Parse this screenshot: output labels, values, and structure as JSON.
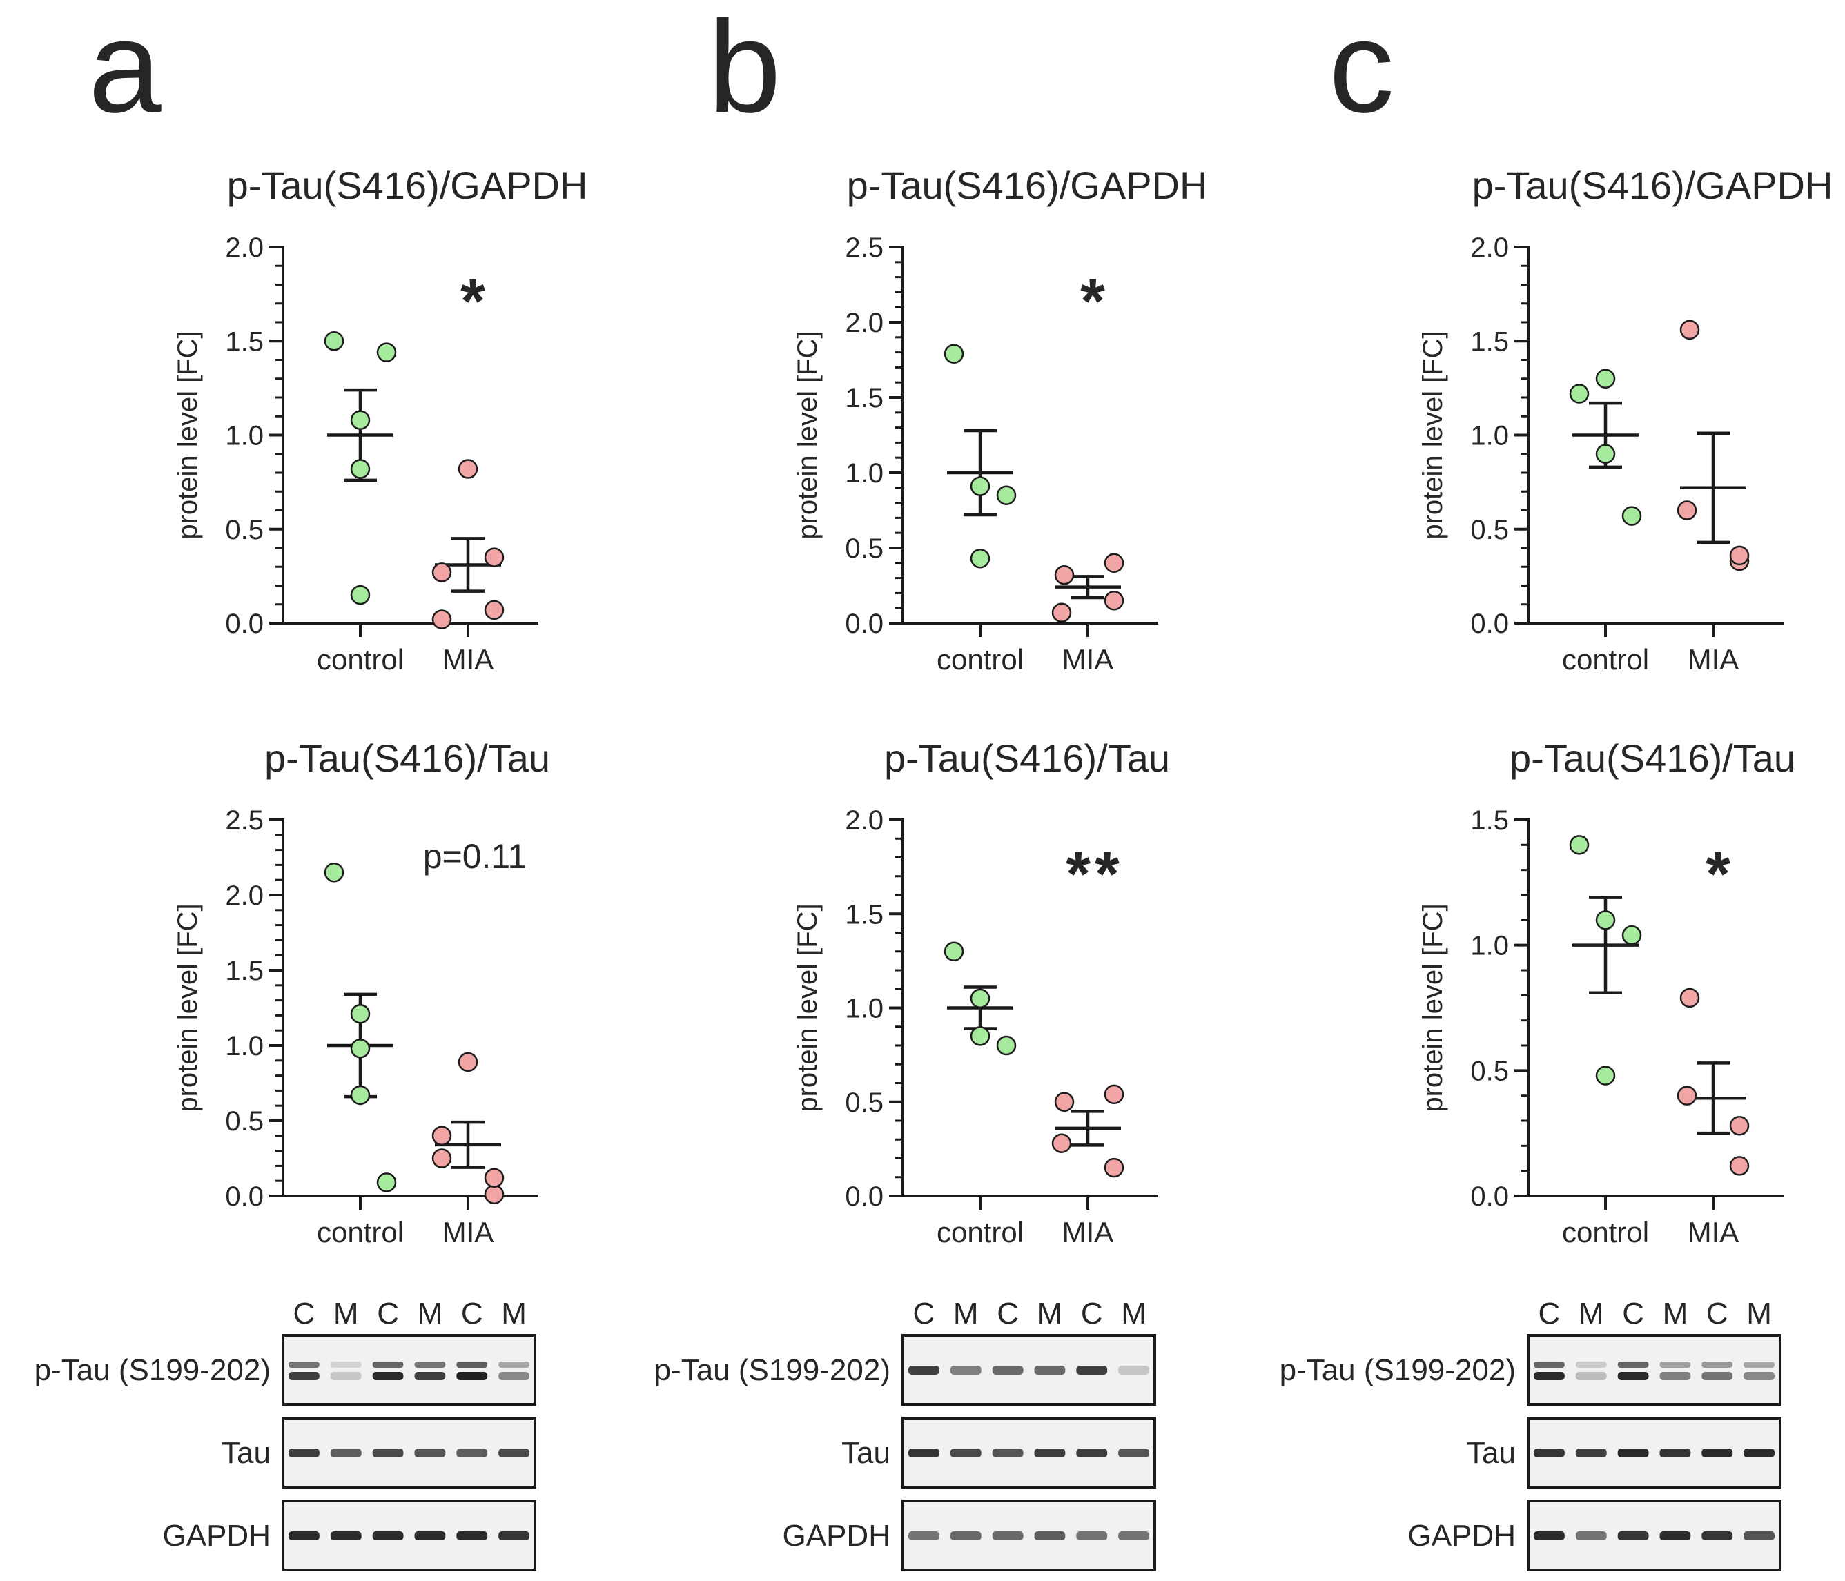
{
  "colors": {
    "control_fill": "#a6ea9e",
    "mia_fill": "#f2a5a5",
    "marker_stroke": "#1c1c1c",
    "axis": "#1a1a1a",
    "text": "#262626",
    "blot_bg": "#f1f1f1",
    "band": "#202020"
  },
  "panels": [
    {
      "letter": "a",
      "blots": {
        "lanes": [
          "C",
          "M",
          "C",
          "M",
          "C",
          "M"
        ],
        "rows": [
          {
            "label": "p-Tau (S199-202)",
            "intensity": [
              0.85,
              0.2,
              0.95,
              0.85,
              1.0,
              0.5
            ],
            "double": true
          },
          {
            "label": "Tau",
            "intensity": [
              0.85,
              0.7,
              0.8,
              0.75,
              0.7,
              0.8
            ],
            "double": false
          },
          {
            "label": "GAPDH",
            "intensity": [
              0.95,
              0.95,
              0.95,
              0.95,
              0.95,
              0.9
            ],
            "double": false
          }
        ]
      }
    },
    {
      "letter": "b",
      "blots": {
        "lanes": [
          "C",
          "M",
          "C",
          "M",
          "C",
          "M"
        ],
        "rows": [
          {
            "label": "p-Tau (S199-202)",
            "intensity": [
              0.85,
              0.55,
              0.65,
              0.65,
              0.85,
              0.2
            ],
            "double": false
          },
          {
            "label": "Tau",
            "intensity": [
              0.9,
              0.8,
              0.75,
              0.85,
              0.85,
              0.75
            ],
            "double": false
          },
          {
            "label": "GAPDH",
            "intensity": [
              0.6,
              0.65,
              0.65,
              0.7,
              0.6,
              0.6
            ],
            "double": false
          }
        ]
      }
    },
    {
      "letter": "c",
      "blots": {
        "lanes": [
          "C",
          "M",
          "C",
          "M",
          "C",
          "M"
        ],
        "rows": [
          {
            "label": "p-Tau (S199-202)",
            "intensity": [
              0.95,
              0.25,
              0.95,
              0.55,
              0.6,
              0.5
            ],
            "double": true
          },
          {
            "label": "Tau",
            "intensity": [
              0.9,
              0.85,
              0.95,
              0.9,
              0.95,
              0.95
            ],
            "double": false
          },
          {
            "label": "GAPDH",
            "intensity": [
              0.95,
              0.6,
              0.9,
              0.95,
              0.9,
              0.75
            ],
            "double": false
          }
        ]
      }
    }
  ],
  "chart_data": [
    {
      "type": "scatter",
      "panel": "a",
      "title": "p-Tau(S416)/GAPDH",
      "xlabel": "",
      "ylabel": "protein level [FC]",
      "categories": [
        "control",
        "MIA"
      ],
      "ylim": [
        0,
        2.0
      ],
      "yticks": [
        0.0,
        0.5,
        1.0,
        1.5,
        2.0
      ],
      "yticklabels": [
        "0.0",
        "0.5",
        "1.0",
        "1.5",
        "2.0"
      ],
      "annotation": "*",
      "series": [
        {
          "name": "control",
          "values": [
            1.5,
            1.08,
            0.82,
            0.15,
            1.44
          ],
          "mean": 1.0,
          "sem": 0.24
        },
        {
          "name": "MIA",
          "values": [
            0.82,
            0.27,
            0.02,
            0.35,
            0.07
          ],
          "mean": 0.31,
          "sem": 0.14
        }
      ]
    },
    {
      "type": "scatter",
      "panel": "b",
      "title": "p-Tau(S416)/GAPDH",
      "xlabel": "",
      "ylabel": "protein level [FC]",
      "categories": [
        "control",
        "MIA"
      ],
      "ylim": [
        0,
        2.5
      ],
      "yticks": [
        0.0,
        0.5,
        1.0,
        1.5,
        2.0,
        2.5
      ],
      "yticklabels": [
        "0.0",
        "0.5",
        "1.0",
        "1.5",
        "2.0",
        "2.5"
      ],
      "annotation": "*",
      "series": [
        {
          "name": "control",
          "values": [
            1.79,
            0.91,
            0.85,
            0.43
          ],
          "mean": 1.0,
          "sem": 0.28
        },
        {
          "name": "MIA",
          "values": [
            0.32,
            0.07,
            0.4,
            0.15
          ],
          "mean": 0.24,
          "sem": 0.07
        }
      ]
    },
    {
      "type": "scatter",
      "panel": "c",
      "title": "p-Tau(S416)/GAPDH",
      "xlabel": "",
      "ylabel": "protein level [FC]",
      "categories": [
        "control",
        "MIA"
      ],
      "ylim": [
        0,
        2.0
      ],
      "yticks": [
        0.0,
        0.5,
        1.0,
        1.5,
        2.0
      ],
      "yticklabels": [
        "0.0",
        "0.5",
        "1.0",
        "1.5",
        "2.0"
      ],
      "annotation": "",
      "series": [
        {
          "name": "control",
          "values": [
            1.22,
            0.9,
            0.57,
            1.3
          ],
          "mean": 1.0,
          "sem": 0.17
        },
        {
          "name": "MIA",
          "values": [
            1.56,
            0.6,
            0.33,
            0.36
          ],
          "mean": 0.72,
          "sem": 0.29
        }
      ]
    },
    {
      "type": "scatter",
      "panel": "a",
      "title": "p-Tau(S416)/Tau",
      "xlabel": "",
      "ylabel": "protein level [FC]",
      "categories": [
        "control",
        "MIA"
      ],
      "ylim": [
        0,
        2.5
      ],
      "yticks": [
        0.0,
        0.5,
        1.0,
        1.5,
        2.0,
        2.5
      ],
      "yticklabels": [
        "0.0",
        "0.5",
        "1.0",
        "1.5",
        "2.0",
        "2.5"
      ],
      "annotation": "p=0.11",
      "series": [
        {
          "name": "control",
          "values": [
            2.15,
            1.21,
            0.98,
            0.67,
            0.09
          ],
          "mean": 1.0,
          "sem": 0.34
        },
        {
          "name": "MIA",
          "values": [
            0.89,
            0.4,
            0.25,
            0.01,
            0.12
          ],
          "mean": 0.34,
          "sem": 0.15
        }
      ]
    },
    {
      "type": "scatter",
      "panel": "b",
      "title": "p-Tau(S416)/Tau",
      "xlabel": "",
      "ylabel": "protein level [FC]",
      "categories": [
        "control",
        "MIA"
      ],
      "ylim": [
        0,
        2.0
      ],
      "yticks": [
        0.0,
        0.5,
        1.0,
        1.5,
        2.0
      ],
      "yticklabels": [
        "0.0",
        "0.5",
        "1.0",
        "1.5",
        "2.0"
      ],
      "annotation": "**",
      "series": [
        {
          "name": "control",
          "values": [
            1.3,
            1.05,
            0.8,
            0.85
          ],
          "mean": 1.0,
          "sem": 0.11
        },
        {
          "name": "MIA",
          "values": [
            0.5,
            0.28,
            0.15,
            0.54
          ],
          "mean": 0.36,
          "sem": 0.09
        }
      ]
    },
    {
      "type": "scatter",
      "panel": "c",
      "title": "p-Tau(S416)/Tau",
      "xlabel": "",
      "ylabel": "protein level [FC]",
      "categories": [
        "control",
        "MIA"
      ],
      "ylim": [
        0,
        1.5
      ],
      "yticks": [
        0.0,
        0.5,
        1.0,
        1.5
      ],
      "yticklabels": [
        "0.0",
        "0.5",
        "1.0",
        "1.5"
      ],
      "annotation": "*",
      "series": [
        {
          "name": "control",
          "values": [
            1.4,
            1.1,
            1.04,
            0.48
          ],
          "mean": 1.0,
          "sem": 0.19
        },
        {
          "name": "MIA",
          "values": [
            0.79,
            0.4,
            0.28,
            0.12
          ],
          "mean": 0.39,
          "sem": 0.14
        }
      ]
    }
  ]
}
